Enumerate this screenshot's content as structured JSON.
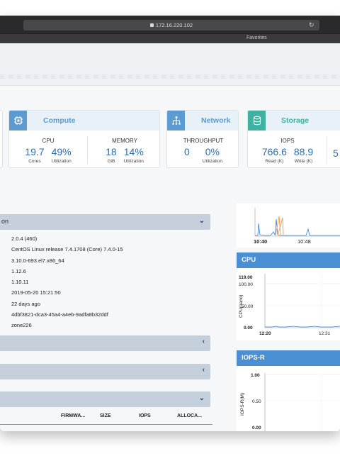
{
  "browser": {
    "url": "172.16.220.102",
    "favorites_label": "Favorites"
  },
  "cards": {
    "compute": {
      "title": "Compute",
      "cpu": {
        "label": "CPU",
        "cores": "19.7",
        "cores_unit": "Cores",
        "util": "49%",
        "util_unit": "Utilization"
      },
      "memory": {
        "label": "MEMORY",
        "gib": "18",
        "gib_unit": "GiB",
        "util": "14%",
        "util_unit": "Utilization"
      }
    },
    "network": {
      "title": "Network",
      "throughput": {
        "label": "THROUGHPUT",
        "value": "0",
        "util": "0%",
        "util_unit": "Utilization"
      }
    },
    "storage": {
      "title": "Storage",
      "iops": {
        "label": "IOPS",
        "read": "766.6",
        "read_unit": "Read (K)",
        "write": "88.9",
        "write_unit": "Write (K)",
        "extra": "5"
      }
    }
  },
  "panels": {
    "info_title": "on",
    "info_lines": [
      "2.0.4 (460)",
      "CentOS Linux release 7.4.1708 (Core) 7.4.0-15",
      "3.10.0-693.el7.x86_64",
      "1.12.6",
      "1.10.11",
      "2019-05-20 15:21:50",
      "22 days ago",
      "4dbf3821-dca3-45a4-a4eb-9adfa8b32ddf",
      "zone226"
    ],
    "table_headers": [
      "FIRMWA...",
      "SIZE",
      "IOPS",
      "ALLOCA..."
    ]
  },
  "charts": {
    "top_ticks": [
      "10:40",
      "10:48"
    ],
    "cpu": {
      "title": "CPU",
      "ylabel": "CPU(nano)",
      "max_label": "119.00",
      "y_ticks": [
        "100.00",
        "50.00",
        "0.00"
      ],
      "x_ticks": [
        "12:20",
        "12:31"
      ]
    },
    "iops_r": {
      "title": "IOPS-R",
      "ylabel": "IOPS-R(M)",
      "y_ticks": [
        "1.00",
        "0.50",
        "0.00"
      ]
    }
  },
  "colors": {
    "compute": "#5b9bd1",
    "network": "#5b9bd1",
    "storage": "#3eb1a3",
    "chart_header": "#4a8fd4",
    "line": "#3a7fc6",
    "spike": "#f2994a"
  }
}
